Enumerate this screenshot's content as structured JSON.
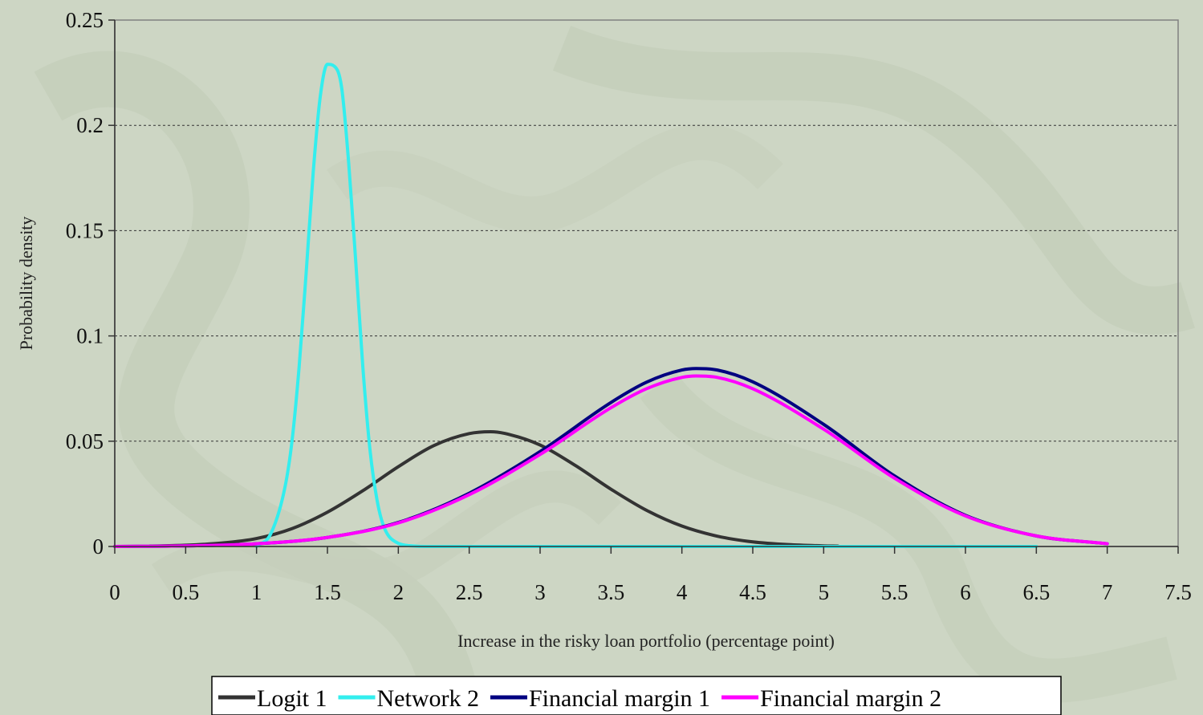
{
  "chart_data": {
    "type": "line",
    "title": "",
    "xlabel": "Increase in the risky loan portfolio (percentage point)",
    "ylabel": "Probability density",
    "xlim": [
      0,
      7.5
    ],
    "ylim": [
      0,
      0.25
    ],
    "x_ticks": [
      "0",
      "0.5",
      "1",
      "1.5",
      "2",
      "2.5",
      "3",
      "3.5",
      "4",
      "4.5",
      "5",
      "5.5",
      "6",
      "6.5",
      "7",
      "7.5"
    ],
    "y_ticks": [
      "0",
      "0.05",
      "0.1",
      "0.15",
      "0.2",
      "0.25"
    ],
    "grid": "horizontal dotted",
    "legend_position": "bottom",
    "series": [
      {
        "name": "Logit 1",
        "color": "#333333",
        "x": [
          0.25,
          0.5,
          0.75,
          1.0,
          1.25,
          1.5,
          1.75,
          2.0,
          2.25,
          2.5,
          2.65,
          2.75,
          3.0,
          3.25,
          3.5,
          3.75,
          4.0,
          4.25,
          4.5,
          4.75,
          5.0,
          5.1
        ],
        "y": [
          0.0002,
          0.0006,
          0.0016,
          0.0038,
          0.0085,
          0.0163,
          0.0265,
          0.0379,
          0.0479,
          0.0536,
          0.0545,
          0.0537,
          0.0482,
          0.0384,
          0.0272,
          0.0172,
          0.0097,
          0.0049,
          0.0022,
          0.0009,
          0.0003,
          0.0002
        ]
      },
      {
        "name": "Network 2",
        "color": "#33eeee",
        "x": [
          1.0,
          1.1,
          1.2,
          1.25,
          1.3,
          1.35,
          1.4,
          1.45,
          1.5,
          1.55,
          1.6,
          1.65,
          1.7,
          1.75,
          1.8,
          1.85,
          1.9,
          2.0,
          2.1,
          2.2,
          5.0,
          6.5
        ],
        "y": [
          0.0,
          0.006,
          0.028,
          0.05,
          0.085,
          0.13,
          0.178,
          0.214,
          0.229,
          0.228,
          0.218,
          0.182,
          0.135,
          0.085,
          0.046,
          0.022,
          0.009,
          0.0015,
          0.0003,
          0.0,
          0.0,
          0.0
        ]
      },
      {
        "name": "Financial margin 1",
        "color": "#000080",
        "x": [
          0.0,
          0.5,
          1.0,
          1.5,
          2.0,
          2.5,
          3.0,
          3.5,
          3.75,
          4.0,
          4.1,
          4.25,
          4.5,
          5.0,
          5.5,
          6.0,
          6.5,
          7.0
        ],
        "y": [
          0.0,
          0.0003,
          0.0013,
          0.0043,
          0.0114,
          0.0253,
          0.0451,
          0.0684,
          0.078,
          0.0838,
          0.0845,
          0.0838,
          0.0782,
          0.058,
          0.0335,
          0.0148,
          0.005,
          0.0013
        ]
      },
      {
        "name": "Financial margin 2",
        "color": "#ff00ff",
        "x": [
          0.0,
          0.5,
          1.0,
          1.5,
          2.0,
          2.5,
          3.0,
          3.5,
          3.75,
          4.0,
          4.1,
          4.25,
          4.5,
          5.0,
          5.5,
          6.0,
          6.5,
          7.0
        ],
        "y": [
          0.0,
          0.0003,
          0.0013,
          0.0043,
          0.0112,
          0.0246,
          0.0437,
          0.0659,
          0.0749,
          0.0803,
          0.081,
          0.0803,
          0.0749,
          0.0557,
          0.0324,
          0.0145,
          0.005,
          0.0013
        ]
      }
    ]
  }
}
